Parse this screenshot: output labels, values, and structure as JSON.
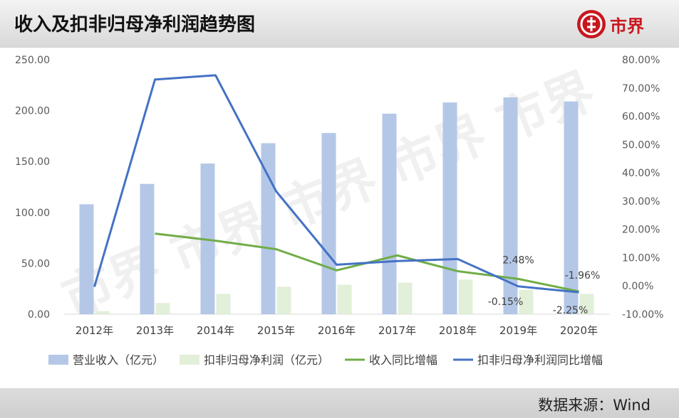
{
  "header": {
    "title": "收入及扣非归母净利润趋势图",
    "logo_text": "市界"
  },
  "footer": {
    "source": "数据来源：Wind"
  },
  "colors": {
    "revenue_bar": "#b4c7e7",
    "profit_bar": "#e2efd9",
    "revenue_growth_line": "#70ad47",
    "profit_growth_line": "#4472c4",
    "brand_red": "#c8161d"
  },
  "chart_data": {
    "type": "bar",
    "title": "收入及扣非归母净利润趋势图",
    "categories": [
      "2012年",
      "2013年",
      "2014年",
      "2015年",
      "2016年",
      "2017年",
      "2018年",
      "2019年",
      "2020年"
    ],
    "y_left": {
      "min": 0,
      "max": 250,
      "ticks": [
        "0.00",
        "50.00",
        "100.00",
        "150.00",
        "200.00",
        "250.00"
      ]
    },
    "y_right": {
      "min": -10,
      "max": 80,
      "ticks": [
        "-10.00%",
        "0.00%",
        "10.00%",
        "20.00%",
        "30.00%",
        "40.00%",
        "50.00%",
        "60.00%",
        "70.00%",
        "80.00%"
      ]
    },
    "series": [
      {
        "name": "营业收入（亿元）",
        "type": "bar",
        "axis": "left",
        "values": [
          108,
          128,
          148,
          168,
          178,
          197,
          208,
          213,
          209
        ]
      },
      {
        "name": "扣非归母净利润（亿元）",
        "type": "bar",
        "axis": "left",
        "values": [
          3,
          11,
          20,
          27,
          29,
          31,
          34,
          24,
          20
        ]
      },
      {
        "name": "收入同比增幅",
        "type": "line",
        "axis": "right",
        "values": [
          null,
          18.5,
          16.0,
          13.0,
          5.5,
          10.8,
          5.2,
          2.48,
          -1.96
        ]
      },
      {
        "name": "扣非归母净利润同比增幅",
        "type": "line",
        "axis": "right",
        "values": [
          -0.3,
          73.0,
          74.5,
          33.5,
          7.5,
          8.8,
          9.5,
          -0.15,
          -2.25
        ]
      }
    ],
    "annotations": [
      {
        "text": "2.48%",
        "category": "2019年",
        "series": "收入同比增幅"
      },
      {
        "text": "-0.15%",
        "category": "2019年",
        "series": "扣非归母净利润同比增幅"
      },
      {
        "text": "-1.96%",
        "category": "2020年",
        "series": "收入同比增幅"
      },
      {
        "text": "-2.25%",
        "category": "2020年",
        "series": "扣非归母净利润同比增幅"
      }
    ],
    "legend_position": "bottom",
    "grid": false
  }
}
